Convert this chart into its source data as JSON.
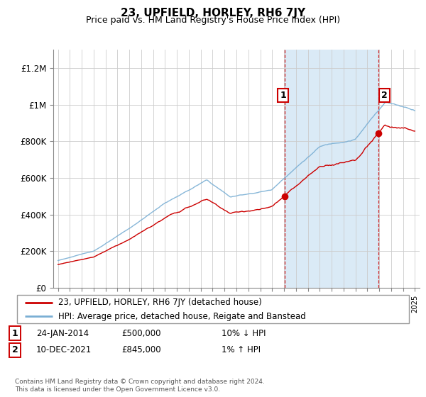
{
  "title": "23, UPFIELD, HORLEY, RH6 7JY",
  "subtitle": "Price paid vs. HM Land Registry's House Price Index (HPI)",
  "ylim": [
    0,
    1300000
  ],
  "yticks": [
    0,
    200000,
    400000,
    600000,
    800000,
    1000000,
    1200000
  ],
  "ytick_labels": [
    "£0",
    "£200K",
    "£400K",
    "£600K",
    "£800K",
    "£1M",
    "£1.2M"
  ],
  "x_start_year": 1995,
  "x_end_year": 2025,
  "hpi_color": "#7aafd4",
  "price_color": "#cc0000",
  "sale1_year": 2014.07,
  "sale1_price": 500000,
  "sale2_year": 2021.92,
  "sale2_price": 845000,
  "shade_color": "#daeaf6",
  "legend_line1": "23, UPFIELD, HORLEY, RH6 7JY (detached house)",
  "legend_line2": "HPI: Average price, detached house, Reigate and Banstead",
  "annotation1_date": "24-JAN-2014",
  "annotation1_price": "£500,000",
  "annotation1_hpi": "10% ↓ HPI",
  "annotation2_date": "10-DEC-2021",
  "annotation2_price": "£845,000",
  "annotation2_hpi": "1% ↑ HPI",
  "footer": "Contains HM Land Registry data © Crown copyright and database right 2024.\nThis data is licensed under the Open Government Licence v3.0.",
  "title_fontsize": 11,
  "subtitle_fontsize": 9,
  "axis_fontsize": 8.5,
  "grid_color": "#cccccc"
}
